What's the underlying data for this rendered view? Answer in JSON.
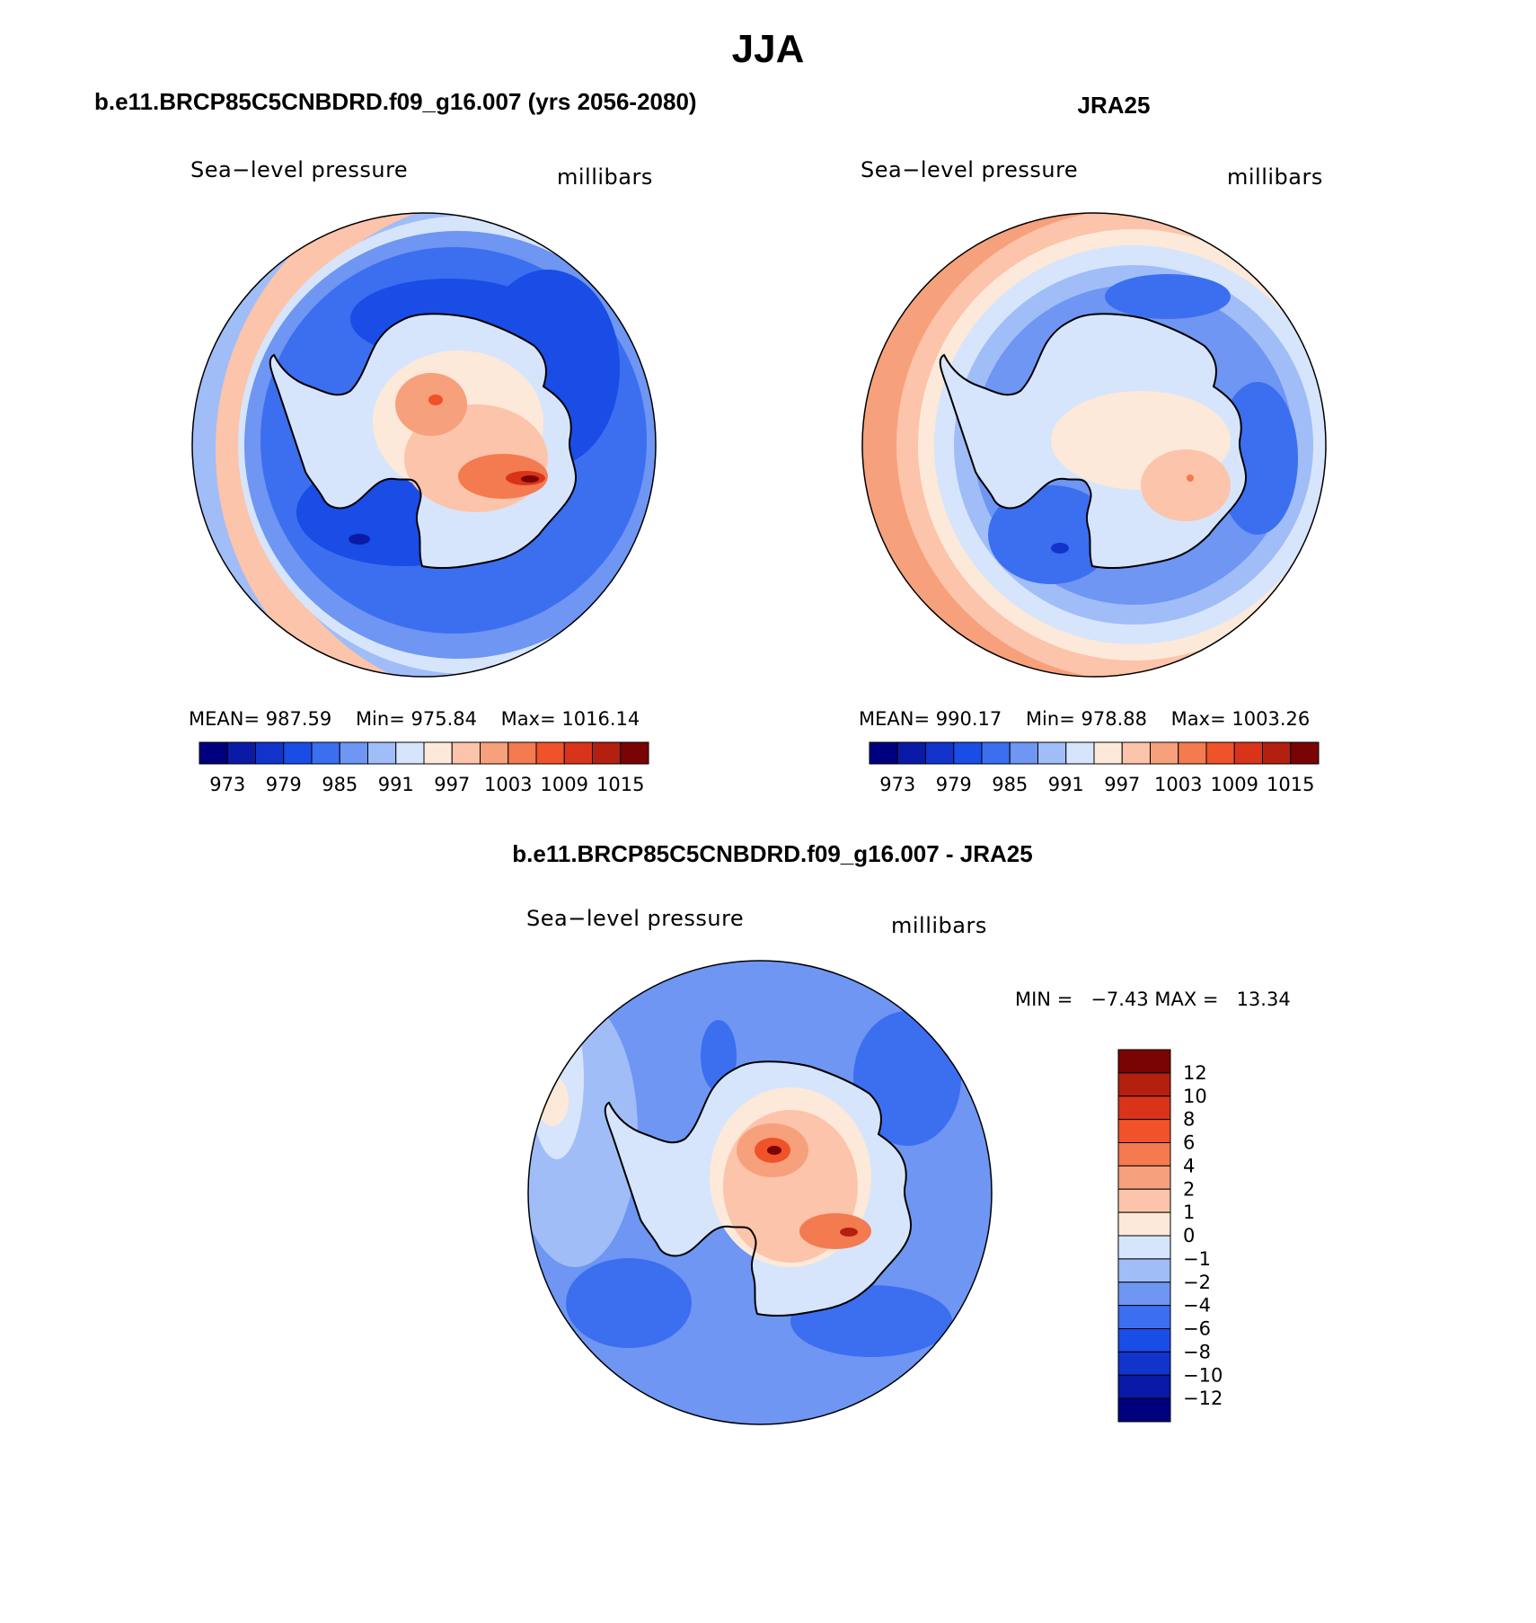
{
  "title": "JJA",
  "colors": {
    "levels": [
      "#00007f",
      "#0a1aa6",
      "#1233cc",
      "#1a4ce6",
      "#3c6ef0",
      "#6e96f2",
      "#a0bdf8",
      "#d6e5fb",
      "#fde9d9",
      "#fcc4aa",
      "#f7a07c",
      "#f47a50",
      "#f0522a",
      "#d9341a",
      "#b3200f",
      "#7a0403"
    ],
    "diff_levels": [
      "#00007f",
      "#0a1aa6",
      "#1233cc",
      "#1a4ce6",
      "#3c6ef0",
      "#6e96f2",
      "#a0bdf8",
      "#d6e5fb",
      "#fde9d9",
      "#fcc4aa",
      "#f7a07c",
      "#f47a50",
      "#f0522a",
      "#d9341a",
      "#b3200f",
      "#7a0403"
    ],
    "coast": "#000000"
  },
  "panels": {
    "model": {
      "title": "b.e11.BRCP85C5CNBDRD.f09_g16.007 (yrs 2056-2080)",
      "variable": "Sea−level pressure",
      "units": "millibars",
      "mean_label": "MEAN=",
      "mean": "987.59",
      "min_label": "Min=",
      "min": "975.84",
      "max_label": "Max=",
      "max": "1016.14"
    },
    "obs": {
      "title": "JRA25",
      "variable": "Sea−level pressure",
      "units": "millibars",
      "mean_label": "MEAN=",
      "mean": "990.17",
      "min_label": "Min=",
      "min": "978.88",
      "max_label": "Max=",
      "max": "1003.26"
    },
    "diff": {
      "title": "b.e11.BRCP85C5CNBDRD.f09_g16.007 - JRA25",
      "variable": "Sea−level pressure",
      "units": "millibars",
      "min_label": "MIN =",
      "min": "−7.43",
      "max_label": "MAX =",
      "max": "13.34"
    }
  },
  "colorbar": {
    "tick_labels": [
      "973",
      "979",
      "985",
      "991",
      "997",
      "1003",
      "1009",
      "1015"
    ]
  },
  "diff_colorbar": {
    "tick_labels": [
      "12",
      "10",
      "8",
      "6",
      "4",
      "2",
      "1",
      "0",
      "−1",
      "−2",
      "−4",
      "−6",
      "−8",
      "−10",
      "−12"
    ]
  }
}
